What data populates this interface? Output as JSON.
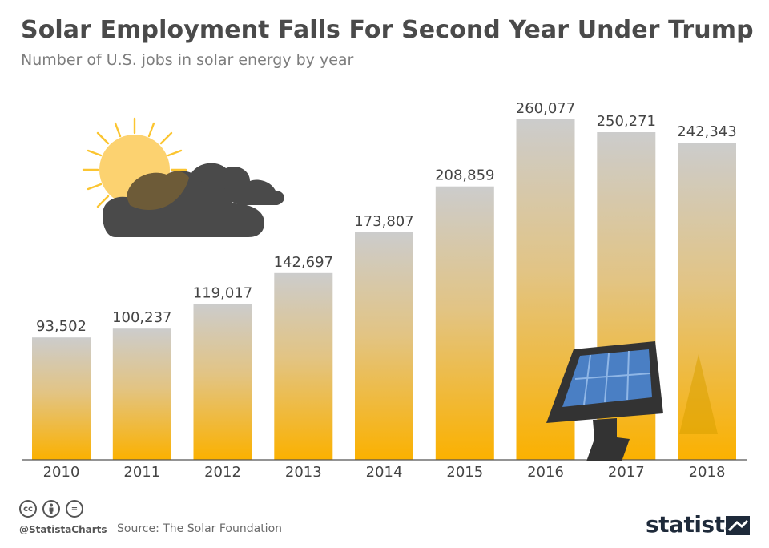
{
  "header": {
    "title": "Solar Employment Falls For Second Year Under Trump",
    "subtitle": "Number of U.S. jobs in solar energy by year"
  },
  "chart_data": {
    "type": "bar",
    "categories": [
      "2010",
      "2011",
      "2012",
      "2013",
      "2014",
      "2015",
      "2016",
      "2017",
      "2018"
    ],
    "values": [
      93502,
      100237,
      119017,
      142697,
      173807,
      208859,
      260077,
      250271,
      242343
    ],
    "value_labels": [
      "93,502",
      "100,237",
      "119,017",
      "142,697",
      "173,807",
      "208,859",
      "260,077",
      "250,271",
      "242,343"
    ],
    "ylim": [
      0,
      260077
    ],
    "grid": false,
    "colors": {
      "bar_top": "#cccccc",
      "bar_bottom": "#fbb100"
    }
  },
  "footer": {
    "license_icons": [
      "cc-icon",
      "attribution-icon",
      "no-derivatives-icon"
    ],
    "cc_glyph": "cc",
    "nd_glyph": "=",
    "handle": "@StatistaCharts",
    "source": "Source: The Solar Foundation",
    "brand": "statista"
  }
}
